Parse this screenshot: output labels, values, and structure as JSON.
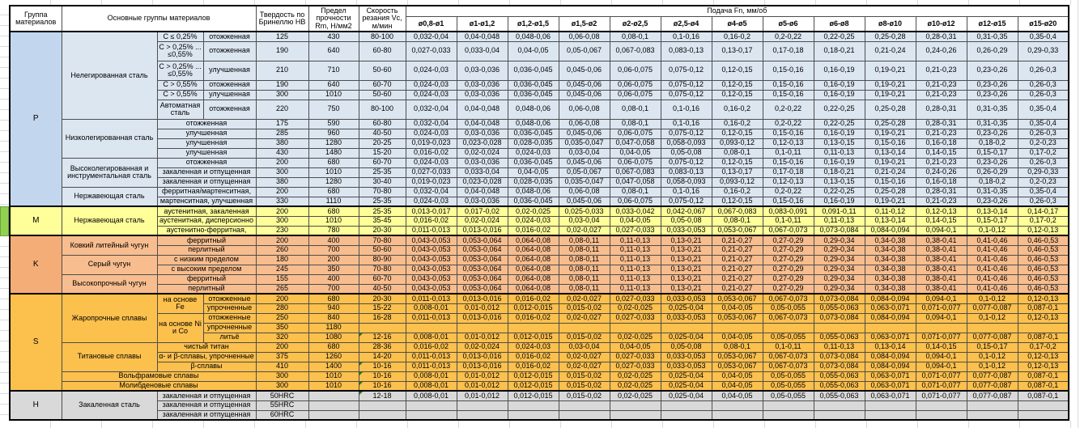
{
  "colors": {
    "P_row": "#dce6f1",
    "P_id": "#c2d6ee",
    "M_row": "#ffff99",
    "M_id": "#ffff99",
    "K_row": "#f8bd8e",
    "K_id": "#f5ad77",
    "S_row": "#fcc04d",
    "S_id": "#fcc04d",
    "H_row": "#d9d9d9",
    "H_id": "#d9d9d9",
    "flag_triangle": "#217821",
    "highlight_cell": "#92d050"
  },
  "table": {
    "headers": {
      "group": "Группа материалов",
      "main_groups": "Основные группы материалов",
      "hardness": "Твердость по Бринеллю HB",
      "strength": "Предел прочности Rm, Н/мм2",
      "speed": "Скорость резания Vc, м/мин",
      "feed": "Подача Fn, мм/об",
      "diameters": [
        "ø0,8-ø1",
        "ø1-ø1,2",
        "ø1,2-ø1,5",
        "ø1,5-ø2",
        "ø2-ø2,5",
        "ø2,5-ø4",
        "ø4-ø5",
        "ø5-ø6",
        "ø6-ø8",
        "ø8-ø10",
        "ø10-ø12",
        "ø12-ø15",
        "ø15-ø20"
      ]
    },
    "feed_patterns": {
      "A": [
        "0,032-0,04",
        "0,04-0,048",
        "0,048-0,06",
        "0,06-0,08",
        "0,08-0,1",
        "0,1-0,16",
        "0,16-0,2",
        "0,2-0,22",
        "0,22-0,25",
        "0,25-0,28",
        "0,28-0,31",
        "0,31-0,35",
        "0,35-0,4"
      ],
      "B": [
        "0,027-0,033",
        "0,033-0,04",
        "0,04-0,05",
        "0,05-0,067",
        "0,067-0,083",
        "0,083-0,13",
        "0,13-0,17",
        "0,17-0,18",
        "0,18-0,21",
        "0,21-0,24",
        "0,24-0,26",
        "0,26-0,29",
        "0,29-0,33"
      ],
      "C": [
        "0,024-0,03",
        "0,03-0,036",
        "0,036-0,045",
        "0,045-0,06",
        "0,06-0,075",
        "0,075-0,12",
        "0,12-0,15",
        "0,15-0,16",
        "0,16-0,19",
        "0,19-0,21",
        "0,21-0,23",
        "0,23-0,26",
        "0,26-0,3"
      ],
      "D": [
        "0,019-0,023",
        "0,023-0,028",
        "0,028-0,035",
        "0,035-0,047",
        "0,047-0,058",
        "0,058-0,093",
        "0,093-0,12",
        "0,12-0,13",
        "0,13-0,15",
        "0,15-0,16",
        "0,16-0,18",
        "0,18-0,2",
        "0,2-0,23"
      ],
      "E": [
        "0,016-0,02",
        "0,02-0,024",
        "0,024-0,03",
        "0,03-0,04",
        "0,04-0,05",
        "0,05-0,08",
        "0,08-0,1",
        "0,1-0,11",
        "0,11-0,13",
        "0,13-0,14",
        "0,14-0,15",
        "0,15-0,17",
        "0,17-0,2"
      ],
      "F": [
        "0,013-0,017",
        "0,017-0,02",
        "0,02-0,025",
        "0,025-0,033",
        "0,033-0,042",
        "0,042-0,067",
        "0,067-0,083",
        "0,083-0,091",
        "0,091-0,11",
        "0,11-0,12",
        "0,12-0,13",
        "0,13-0,14",
        "0,14-0,17"
      ],
      "G": [
        "0,011-0,013",
        "0,013-0,016",
        "0,016-0,02",
        "0,02-0,027",
        "0,027-0,033",
        "0,033-0,053",
        "0,053-0,067",
        "0,067-0,073",
        "0,073-0,084",
        "0,084-0,094",
        "0,094-0,1",
        "0,1-0,12",
        "0,12-0,13"
      ],
      "K": [
        "0,043-0,053",
        "0,053-0,064",
        "0,064-0,08",
        "0,08-0,11",
        "0,11-0,13",
        "0,13-0,21",
        "0,21-0,27",
        "0,27-0,29",
        "0,29-0,34",
        "0,34-0,38",
        "0,38-0,41",
        "0,41-0,46",
        "0,46-0,53"
      ],
      "I": [
        "0,008-0,01",
        "0,01-0,012",
        "0,012-0,015",
        "0,015-0,02",
        "0,02-0,025",
        "0,025-0,04",
        "0,04-0,05",
        "0,05-0,055",
        "0,055-0,063",
        "0,063-0,071",
        "0,071-0,077",
        "0,077-0,087",
        "0,087-0,1"
      ],
      "Z": [
        "",
        "",
        "",
        "",
        "",
        "",
        "",
        "",
        "",
        "",
        "",
        "",
        ""
      ]
    },
    "groups": [
      {
        "id": "P",
        "rows": [
          {
            "cells": [
              {
                "t": "Нелегированная сталь",
                "rs": 6
              },
              {
                "t": "C ≤ 0,25%"
              },
              {
                "t": "отожженная"
              },
              {
                "t": "125"
              },
              {
                "t": "430"
              }
            ],
            "vc": "80-100",
            "feed": "A"
          },
          {
            "h": 2,
            "cells": [
              {
                "t": "C > 0,25% ... ≤0,55%"
              },
              {
                "t": "отожженная"
              },
              {
                "t": "190"
              },
              {
                "t": "640"
              }
            ],
            "vc": "60-80",
            "feed": "B"
          },
          {
            "h": 2,
            "cells": [
              {
                "t": "C > 0,25% ... ≤0,55%"
              },
              {
                "t": "улучшенная"
              },
              {
                "t": "210"
              },
              {
                "t": "710"
              }
            ],
            "vc": "50-60",
            "feed": "C"
          },
          {
            "cells": [
              {
                "t": "C > 0,55%"
              },
              {
                "t": "отожженная"
              },
              {
                "t": "190"
              },
              {
                "t": "640"
              }
            ],
            "vc": "60-70",
            "feed": "C"
          },
          {
            "cells": [
              {
                "t": "C > 0,55%"
              },
              {
                "t": "улучшенная"
              },
              {
                "t": "300"
              },
              {
                "t": "1010"
              }
            ],
            "vc": "50-60",
            "feed": "C"
          },
          {
            "h": 2,
            "cells": [
              {
                "t": "Автоматная сталь"
              },
              {
                "t": "отожженная"
              },
              {
                "t": "220"
              },
              {
                "t": "750"
              }
            ],
            "vc": "80-100",
            "feed": "A"
          },
          {
            "cells": [
              {
                "t": "Низколегированная сталь",
                "rs": 4
              },
              {
                "t": "отожженная",
                "cs": 2
              },
              {
                "t": "175"
              },
              {
                "t": "590"
              }
            ],
            "vc": "60-80",
            "feed": "A"
          },
          {
            "cells": [
              {
                "t": "улучшенная",
                "cs": 2
              },
              {
                "t": "285"
              },
              {
                "t": "960"
              }
            ],
            "vc": "40-50",
            "feed": "C"
          },
          {
            "cells": [
              {
                "t": "улучшенная",
                "cs": 2
              },
              {
                "t": "380"
              },
              {
                "t": "1280"
              }
            ],
            "vc": "20-25",
            "feed": "D"
          },
          {
            "cells": [
              {
                "t": "улучшенная",
                "cs": 2
              },
              {
                "t": "430"
              },
              {
                "t": "1480"
              }
            ],
            "vc": "15-20",
            "feed": "E"
          },
          {
            "cells": [
              {
                "t": "Высоколегированная и инструментальная сталь",
                "rs": 3
              },
              {
                "t": "отожженная",
                "cs": 2
              },
              {
                "t": "200"
              },
              {
                "t": "680"
              }
            ],
            "vc": "60-70",
            "feed": "C"
          },
          {
            "cells": [
              {
                "t": "закаленная и отпущенная",
                "cs": 2
              },
              {
                "t": "300"
              },
              {
                "t": "1010"
              }
            ],
            "vc": "25-35",
            "feed": "B"
          },
          {
            "cells": [
              {
                "t": "закаленная и отпущенная",
                "cs": 2
              },
              {
                "t": "380"
              },
              {
                "t": "1280"
              }
            ],
            "vc": "30-40",
            "feed": "D"
          },
          {
            "cells": [
              {
                "t": "Нержавеющая сталь",
                "rs": 2
              },
              {
                "t": "ферритная/мартенситная,",
                "cs": 2
              },
              {
                "t": "200"
              },
              {
                "t": "680"
              }
            ],
            "vc": "70-80",
            "feed": "A"
          },
          {
            "cells": [
              {
                "t": "мартенситная, улучшенная",
                "cs": 2
              },
              {
                "t": "330"
              },
              {
                "t": "1110"
              }
            ],
            "vc": "25-35",
            "feed": "C"
          }
        ]
      },
      {
        "id": "M",
        "rows": [
          {
            "cells": [
              {
                "t": "Нержавеющая сталь",
                "rs": 3
              },
              {
                "t": "аустенитная, закаленная",
                "cs": 2
              },
              {
                "t": "200"
              },
              {
                "t": "680"
              }
            ],
            "vc": "25-35",
            "feed": "F"
          },
          {
            "cells": [
              {
                "t": "аустенитная, дисперсионно",
                "cs": 2
              },
              {
                "t": "300"
              },
              {
                "t": "1010"
              }
            ],
            "vc": "35-45",
            "feed": "E"
          },
          {
            "cells": [
              {
                "t": "аустенитно-ферритная,",
                "cs": 2
              },
              {
                "t": "230"
              },
              {
                "t": "780"
              }
            ],
            "vc": "20-30",
            "feed": "G"
          }
        ]
      },
      {
        "id": "K",
        "rows": [
          {
            "cells": [
              {
                "t": "Ковкий литейный чугун",
                "rs": 2
              },
              {
                "t": "ферритный",
                "cs": 2
              },
              {
                "t": "200"
              },
              {
                "t": "400"
              }
            ],
            "vc": "70-80",
            "feed": "K"
          },
          {
            "cells": [
              {
                "t": "перлитный",
                "cs": 2
              },
              {
                "t": "260"
              },
              {
                "t": "700"
              }
            ],
            "vc": "50-60",
            "feed": "K"
          },
          {
            "cells": [
              {
                "t": "Серый чугун",
                "rs": 2
              },
              {
                "t": "с низким пределом",
                "cs": 2
              },
              {
                "t": "180"
              },
              {
                "t": "200"
              }
            ],
            "vc": "80-90",
            "feed": "K"
          },
          {
            "cells": [
              {
                "t": "с высоким пределом",
                "cs": 2
              },
              {
                "t": "245"
              },
              {
                "t": "350"
              }
            ],
            "vc": "70-80",
            "feed": "K"
          },
          {
            "cells": [
              {
                "t": "Высокопрочный чугун",
                "rs": 2
              },
              {
                "t": "ферритный",
                "cs": 2
              },
              {
                "t": "155"
              },
              {
                "t": "400"
              }
            ],
            "vc": "60-70",
            "feed": "K"
          },
          {
            "cells": [
              {
                "t": "перлитный",
                "cs": 2
              },
              {
                "t": "265"
              },
              {
                "t": "700"
              }
            ],
            "vc": "40-50",
            "feed": "K"
          }
        ]
      },
      {
        "id": "S",
        "rows": [
          {
            "cells": [
              {
                "t": "Жаропрочные сплавы",
                "rs": 5
              },
              {
                "t": "на основе Fe",
                "rs": 2
              },
              {
                "t": "отожженные"
              },
              {
                "t": "200"
              },
              {
                "t": "680"
              }
            ],
            "vc": "20-30",
            "feed": "G"
          },
          {
            "cells": [
              {
                "t": "упрочненные"
              },
              {
                "t": "280"
              },
              {
                "t": "940"
              }
            ],
            "vc": "15-22",
            "feed": "I"
          },
          {
            "cells": [
              {
                "t": "на основе Ni и Co",
                "rs": 3
              },
              {
                "t": "отожженные"
              },
              {
                "t": "250"
              },
              {
                "t": "840"
              }
            ],
            "vc": "16-28",
            "feed": "G"
          },
          {
            "cells": [
              {
                "t": "упрочненные"
              },
              {
                "t": "350"
              },
              {
                "t": "1180"
              }
            ],
            "vc": "",
            "feed": "Z"
          },
          {
            "cells": [
              {
                "t": "литьё"
              },
              {
                "t": "320"
              },
              {
                "t": "1080"
              }
            ],
            "vc": "12-16",
            "flag": true,
            "feed": "I"
          },
          {
            "cells": [
              {
                "t": "Титановые сплавы",
                "rs": 3
              },
              {
                "t": "чистый титан",
                "cs": 2
              },
              {
                "t": "200"
              },
              {
                "t": "680"
              }
            ],
            "vc": "28-36",
            "feed": "E"
          },
          {
            "cells": [
              {
                "t": "α- и β-сплавы, упрочненные",
                "cs": 2
              },
              {
                "t": "375"
              },
              {
                "t": "1260"
              }
            ],
            "vc": "14-20",
            "feed": "G"
          },
          {
            "cells": [
              {
                "t": "β-сплавы",
                "cs": 2
              },
              {
                "t": "410"
              },
              {
                "t": "1400"
              }
            ],
            "vc": "10-16",
            "flag": true,
            "feed": "G"
          },
          {
            "cells": [
              {
                "t": "Вольфрамовые сплавы",
                "cs": 3
              },
              {
                "t": "300"
              },
              {
                "t": "1010"
              }
            ],
            "vc": "10-16",
            "flag": true,
            "feed": "I"
          },
          {
            "cells": [
              {
                "t": "Молибденовые сплавы",
                "cs": 3
              },
              {
                "t": "300"
              },
              {
                "t": "1010"
              }
            ],
            "vc": "10-16",
            "flag": true,
            "feed": "I"
          }
        ]
      },
      {
        "id": "H",
        "rows": [
          {
            "cells": [
              {
                "t": "Закаленная сталь",
                "rs": 3
              },
              {
                "t": "закаленная и отпущенная",
                "cs": 2
              },
              {
                "t": "50HRC"
              },
              {
                "t": ""
              }
            ],
            "vc": "12-18",
            "flag": true,
            "feed": "I"
          },
          {
            "cells": [
              {
                "t": "закаленная и отпущенная",
                "cs": 2
              },
              {
                "t": "55HRC"
              },
              {
                "t": ""
              }
            ],
            "vc": "",
            "feed": "Z"
          },
          {
            "cells": [
              {
                "t": "закаленная и отпущенная",
                "cs": 2
              },
              {
                "t": "60HRC"
              },
              {
                "t": ""
              }
            ],
            "vc": "",
            "feed": "Z"
          }
        ]
      }
    ]
  }
}
